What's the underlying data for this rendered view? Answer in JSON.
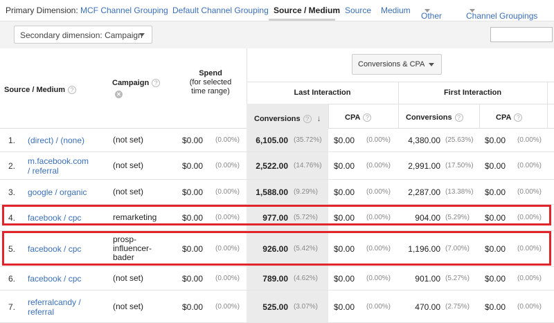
{
  "dimensions": {
    "label": "Primary Dimension:",
    "items": [
      {
        "label": "MCF Channel Grouping",
        "active": false
      },
      {
        "label": "Default Channel Grouping",
        "active": false
      },
      {
        "label": "Source / Medium",
        "active": true
      },
      {
        "label": "Source",
        "active": false
      },
      {
        "label": "Medium",
        "active": false
      },
      {
        "label": "Other",
        "active": false,
        "dropdown": true
      }
    ],
    "channel_groupings": "Channel Groupings"
  },
  "toolbar": {
    "secondary_dimension": "Secondary dimension: Campaign",
    "search_value": ""
  },
  "table": {
    "metric_selector": "Conversions & CPA",
    "headers": {
      "source_medium": "Source / Medium",
      "campaign": "Campaign",
      "spend_line1": "Spend",
      "spend_line2": "(for selected",
      "spend_line3": "time range)",
      "last_interaction": "Last Interaction",
      "first_interaction": "First Interaction",
      "conversions": "Conversions",
      "cpa": "CPA"
    },
    "rows": [
      {
        "idx": "1.",
        "src1": "(direct) / (none)",
        "src2": "",
        "camp1": "(not set)",
        "camp2": "",
        "camp3": "",
        "spend": "$0.00",
        "spend_pct": "(0.00%)",
        "lic": "6,105.00",
        "lic_pct": "(35.72%)",
        "lcpa": "$0.00",
        "lcpa_pct": "(0.00%)",
        "fic": "4,380.00",
        "fic_pct": "(25.63%)",
        "fcpa": "$0.00",
        "fcpa_pct": "(0.00%)"
      },
      {
        "idx": "2.",
        "src1": "m.facebook.com",
        "src2": "/ referral",
        "camp1": "(not set)",
        "camp2": "",
        "camp3": "",
        "spend": "$0.00",
        "spend_pct": "(0.00%)",
        "lic": "2,522.00",
        "lic_pct": "(14.76%)",
        "lcpa": "$0.00",
        "lcpa_pct": "(0.00%)",
        "fic": "2,991.00",
        "fic_pct": "(17.50%)",
        "fcpa": "$0.00",
        "fcpa_pct": "(0.00%)"
      },
      {
        "idx": "3.",
        "src1": "google / organic",
        "src2": "",
        "camp1": "(not set)",
        "camp2": "",
        "camp3": "",
        "spend": "$0.00",
        "spend_pct": "(0.00%)",
        "lic": "1,588.00",
        "lic_pct": "(9.29%)",
        "lcpa": "$0.00",
        "lcpa_pct": "(0.00%)",
        "fic": "2,287.00",
        "fic_pct": "(13.38%)",
        "fcpa": "$0.00",
        "fcpa_pct": "(0.00%)"
      },
      {
        "idx": "4.",
        "src1": "facebook / cpc",
        "src2": "",
        "camp1": "remarketing",
        "camp2": "",
        "camp3": "",
        "spend": "$0.00",
        "spend_pct": "(0.00%)",
        "lic": "977.00",
        "lic_pct": "(5.72%)",
        "lcpa": "$0.00",
        "lcpa_pct": "(0.00%)",
        "fic": "904.00",
        "fic_pct": "(5.29%)",
        "fcpa": "$0.00",
        "fcpa_pct": "(0.00%)"
      },
      {
        "idx": "5.",
        "src1": "facebook / cpc",
        "src2": "",
        "camp1": "prosp-",
        "camp2": "influencer-",
        "camp3": "bader",
        "spend": "$0.00",
        "spend_pct": "(0.00%)",
        "lic": "926.00",
        "lic_pct": "(5.42%)",
        "lcpa": "$0.00",
        "lcpa_pct": "(0.00%)",
        "fic": "1,196.00",
        "fic_pct": "(7.00%)",
        "fcpa": "$0.00",
        "fcpa_pct": "(0.00%)"
      },
      {
        "idx": "6.",
        "src1": "facebook / cpc",
        "src2": "",
        "camp1": "(not set)",
        "camp2": "",
        "camp3": "",
        "spend": "$0.00",
        "spend_pct": "(0.00%)",
        "lic": "789.00",
        "lic_pct": "(4.62%)",
        "lcpa": "$0.00",
        "lcpa_pct": "(0.00%)",
        "fic": "901.00",
        "fic_pct": "(5.27%)",
        "fcpa": "$0.00",
        "fcpa_pct": "(0.00%)"
      },
      {
        "idx": "7.",
        "src1": "referralcandy /",
        "src2": "referral",
        "camp1": "(not set)",
        "camp2": "",
        "camp3": "",
        "spend": "$0.00",
        "spend_pct": "(0.00%)",
        "lic": "525.00",
        "lic_pct": "(3.07%)",
        "lcpa": "$0.00",
        "lcpa_pct": "(0.00%)",
        "fic": "470.00",
        "fic_pct": "(2.75%)",
        "fcpa": "$0.00",
        "fcpa_pct": "(0.00%)"
      }
    ]
  },
  "colors": {
    "link": "#3a6fb7",
    "highlight": "#e0242a",
    "sorted_column": "#ebebeb"
  }
}
